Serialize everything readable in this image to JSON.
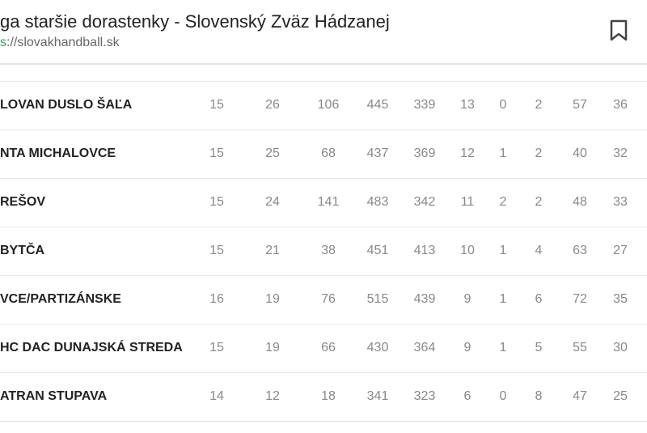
{
  "header": {
    "title": "ga staršie dorastenky - Slovenský Zväz Hádzanej",
    "url_scheme": "s",
    "url_rest": "://slovakhandball.sk"
  },
  "table": {
    "rows": [
      [
        "LOVAN DUSLO ŠAĽA",
        15,
        26,
        106,
        445,
        339,
        13,
        0,
        2,
        57,
        36
      ],
      [
        "NTA MICHALOVCE",
        15,
        25,
        68,
        437,
        369,
        12,
        1,
        2,
        40,
        32
      ],
      [
        "REŠOV",
        15,
        24,
        141,
        483,
        342,
        11,
        2,
        2,
        48,
        33
      ],
      [
        "BYTČA",
        15,
        21,
        38,
        451,
        413,
        10,
        1,
        4,
        63,
        27
      ],
      [
        "VCE/PARTIZÁNSKE",
        16,
        19,
        76,
        515,
        439,
        9,
        1,
        6,
        72,
        35
      ],
      [
        "HC DAC DUNAJSKÁ STREDA",
        15,
        19,
        66,
        430,
        364,
        9,
        1,
        5,
        55,
        30
      ],
      [
        "ATRAN STUPAVA",
        14,
        12,
        18,
        341,
        323,
        6,
        0,
        8,
        47,
        25
      ]
    ]
  }
}
